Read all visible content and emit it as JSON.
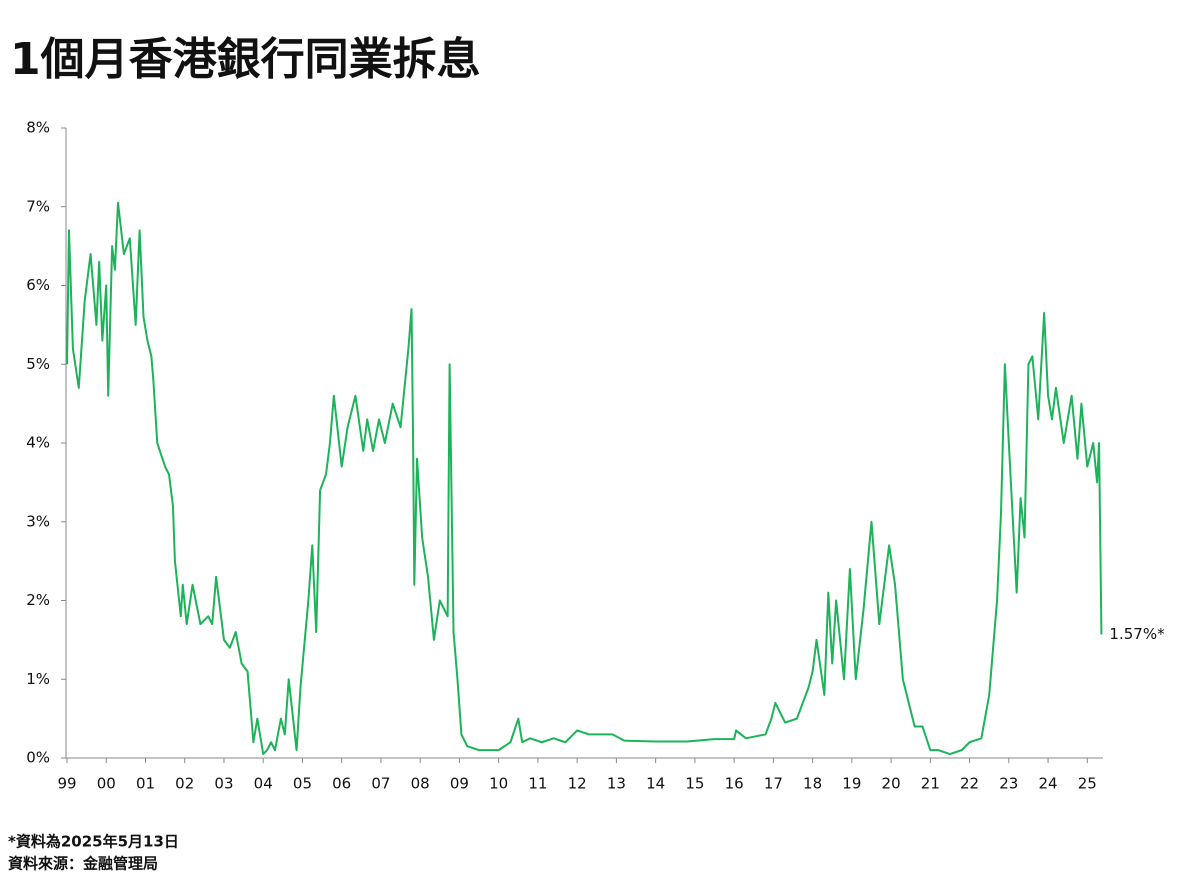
{
  "chart_data": {
    "type": "line",
    "title": "1個月香港銀行同業拆息",
    "x": [
      1999.0,
      1999.05,
      1999.15,
      1999.3,
      1999.45,
      1999.6,
      1999.75,
      1999.82,
      1999.9,
      2000.0,
      2000.05,
      2000.15,
      2000.22,
      2000.3,
      2000.45,
      2000.6,
      2000.75,
      2000.85,
      2000.95,
      2001.05,
      2001.15,
      2001.2,
      2001.3,
      2001.5,
      2001.6,
      2001.7,
      2001.75,
      2001.9,
      2001.95,
      2002.05,
      2002.2,
      2002.4,
      2002.6,
      2002.7,
      2002.8,
      2003.0,
      2003.15,
      2003.3,
      2003.45,
      2003.6,
      2003.75,
      2003.85,
      2004.0,
      2004.1,
      2004.2,
      2004.3,
      2004.45,
      2004.55,
      2004.65,
      2004.85,
      2004.95,
      2005.15,
      2005.25,
      2005.35,
      2005.45,
      2005.6,
      2005.7,
      2005.8,
      2006.0,
      2006.15,
      2006.35,
      2006.55,
      2006.65,
      2006.8,
      2006.95,
      2007.1,
      2007.3,
      2007.5,
      2007.7,
      2007.78,
      2007.82,
      2007.85,
      2007.92,
      2008.05,
      2008.2,
      2008.35,
      2008.5,
      2008.7,
      2008.75,
      2008.85,
      2008.95,
      2009.05,
      2009.2,
      2009.5,
      2009.8,
      2010.0,
      2010.3,
      2010.5,
      2010.6,
      2010.8,
      2011.1,
      2011.4,
      2011.7,
      2012.0,
      2012.3,
      2012.5,
      2012.9,
      2013.2,
      2014.0,
      2014.8,
      2015.5,
      2016.0,
      2016.05,
      2016.3,
      2016.8,
      2016.95,
      2017.05,
      2017.3,
      2017.6,
      2017.9,
      2018.0,
      2018.1,
      2018.3,
      2018.4,
      2018.5,
      2018.6,
      2018.8,
      2018.95,
      2019.1,
      2019.3,
      2019.5,
      2019.7,
      2019.95,
      2020.1,
      2020.3,
      2020.6,
      2020.8,
      2021.0,
      2021.2,
      2021.5,
      2021.8,
      2022.0,
      2022.3,
      2022.5,
      2022.7,
      2022.8,
      2022.9,
      2023.0,
      2023.2,
      2023.3,
      2023.4,
      2023.5,
      2023.6,
      2023.75,
      2023.9,
      2024.0,
      2024.1,
      2024.2,
      2024.4,
      2024.6,
      2024.75,
      2024.85,
      2025.0,
      2025.15,
      2025.25,
      2025.3,
      2025.36
    ],
    "series": [
      {
        "name": "1個月香港銀行同業拆息",
        "color": "#1db35a",
        "values": [
          5.0,
          6.7,
          5.2,
          4.7,
          5.8,
          6.4,
          5.5,
          6.3,
          5.3,
          6.0,
          4.6,
          6.5,
          6.2,
          7.05,
          6.4,
          6.6,
          5.5,
          6.7,
          5.6,
          5.3,
          5.1,
          4.8,
          4.0,
          3.7,
          3.6,
          3.2,
          2.5,
          1.8,
          2.2,
          1.7,
          2.2,
          1.7,
          1.8,
          1.7,
          2.3,
          1.5,
          1.4,
          1.6,
          1.2,
          1.1,
          0.2,
          0.5,
          0.05,
          0.1,
          0.2,
          0.1,
          0.5,
          0.3,
          1.0,
          0.1,
          0.9,
          2.0,
          2.7,
          1.6,
          3.4,
          3.6,
          4.0,
          4.6,
          3.7,
          4.2,
          4.6,
          3.9,
          4.3,
          3.9,
          4.3,
          4.0,
          4.5,
          4.2,
          5.2,
          5.7,
          4.0,
          2.2,
          3.8,
          2.8,
          2.3,
          1.5,
          2.0,
          1.8,
          5.0,
          1.6,
          1.0,
          0.3,
          0.15,
          0.1,
          0.1,
          0.1,
          0.2,
          0.5,
          0.2,
          0.25,
          0.2,
          0.25,
          0.2,
          0.35,
          0.3,
          0.3,
          0.3,
          0.22,
          0.21,
          0.21,
          0.24,
          0.24,
          0.35,
          0.25,
          0.3,
          0.5,
          0.7,
          0.45,
          0.5,
          0.9,
          1.1,
          1.5,
          0.8,
          2.1,
          1.2,
          2.0,
          1.0,
          2.4,
          1.0,
          1.9,
          3.0,
          1.7,
          2.7,
          2.2,
          1.0,
          0.4,
          0.4,
          0.1,
          0.1,
          0.05,
          0.1,
          0.2,
          0.25,
          0.8,
          2.0,
          3.1,
          5.0,
          4.0,
          2.1,
          3.3,
          2.8,
          5.0,
          5.1,
          4.3,
          5.65,
          4.6,
          4.3,
          4.7,
          4.0,
          4.6,
          3.8,
          4.5,
          3.7,
          4.0,
          3.5,
          4.0,
          1.57
        ]
      }
    ],
    "annotation": "1.57%*",
    "xlim": [
      1999,
      2025.4
    ],
    "xticks": [
      {
        "value": 1999,
        "label": "99"
      },
      {
        "value": 2000,
        "label": "00"
      },
      {
        "value": 2001,
        "label": "01"
      },
      {
        "value": 2002,
        "label": "02"
      },
      {
        "value": 2003,
        "label": "03"
      },
      {
        "value": 2004,
        "label": "04"
      },
      {
        "value": 2005,
        "label": "05"
      },
      {
        "value": 2006,
        "label": "06"
      },
      {
        "value": 2007,
        "label": "07"
      },
      {
        "value": 2008,
        "label": "08"
      },
      {
        "value": 2009,
        "label": "09"
      },
      {
        "value": 2010,
        "label": "10"
      },
      {
        "value": 2011,
        "label": "11"
      },
      {
        "value": 2012,
        "label": "12"
      },
      {
        "value": 2013,
        "label": "13"
      },
      {
        "value": 2014,
        "label": "14"
      },
      {
        "value": 2015,
        "label": "15"
      },
      {
        "value": 2016,
        "label": "16"
      },
      {
        "value": 2017,
        "label": "17"
      },
      {
        "value": 2018,
        "label": "18"
      },
      {
        "value": 2019,
        "label": "19"
      },
      {
        "value": 2020,
        "label": "20"
      },
      {
        "value": 2021,
        "label": "21"
      },
      {
        "value": 2022,
        "label": "22"
      },
      {
        "value": 2023,
        "label": "23"
      },
      {
        "value": 2024,
        "label": "24"
      },
      {
        "value": 2025,
        "label": "25"
      }
    ],
    "ylim": [
      0,
      8
    ],
    "yticks": [
      {
        "value": 0,
        "label": "0%"
      },
      {
        "value": 1,
        "label": "1%"
      },
      {
        "value": 2,
        "label": "2%"
      },
      {
        "value": 3,
        "label": "3%"
      },
      {
        "value": 4,
        "label": "4%"
      },
      {
        "value": 5,
        "label": "5%"
      },
      {
        "value": 6,
        "label": "6%"
      },
      {
        "value": 7,
        "label": "7%"
      },
      {
        "value": 8,
        "label": "8%"
      }
    ],
    "grid": false,
    "footnotes": [
      "*資料為2025年5月13日",
      "資料來源：金融管理局"
    ]
  }
}
